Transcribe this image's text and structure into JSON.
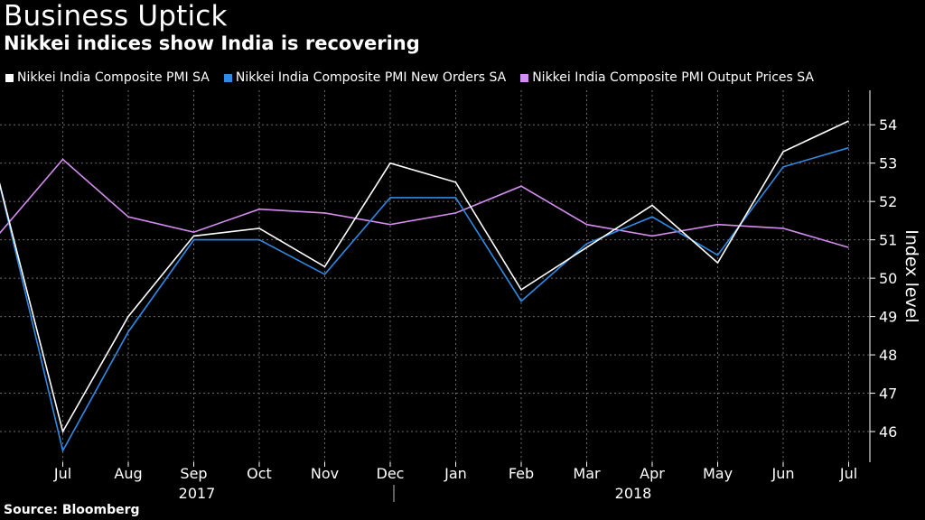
{
  "header": {
    "title": "Business Uptick",
    "subtitle": "Nikkei indices show India is recovering"
  },
  "source": "Source: Bloomberg",
  "chart_data": {
    "type": "line",
    "title": "Business Uptick",
    "subtitle": "Nikkei indices show India is recovering",
    "ylabel": "Index level",
    "xlabel": "",
    "ylim": [
      45.2,
      54.9
    ],
    "yticks": [
      46,
      47,
      48,
      49,
      50,
      51,
      52,
      53,
      54
    ],
    "grid": true,
    "legend_position": "top",
    "x": [
      "2017-06",
      "2017-07",
      "2017-08",
      "2017-09",
      "2017-10",
      "2017-11",
      "2017-12",
      "2018-01",
      "2018-02",
      "2018-03",
      "2018-04",
      "2018-05",
      "2018-06",
      "2018-07"
    ],
    "x_tick_labels": [
      "Jul",
      "Aug",
      "Sep",
      "Oct",
      "Nov",
      "Dec",
      "Jan",
      "Feb",
      "Mar",
      "Apr",
      "May",
      "Jun",
      "Jul"
    ],
    "year_labels": [
      "2017",
      "2018"
    ],
    "series": [
      {
        "name": "Nikkei India Composite PMI SA",
        "color": "#ffffff",
        "values": [
          52.7,
          46.0,
          49.0,
          51.1,
          51.3,
          50.3,
          53.0,
          52.5,
          49.7,
          50.8,
          51.9,
          50.4,
          53.3,
          54.1
        ]
      },
      {
        "name": "Nikkei India Composite PMI New Orders SA",
        "color": "#2f8ae5",
        "values": [
          52.7,
          45.5,
          48.6,
          51.0,
          51.0,
          50.1,
          52.1,
          52.1,
          49.4,
          50.9,
          51.6,
          50.6,
          52.9,
          53.4
        ]
      },
      {
        "name": "Nikkei India Composite PMI Output Prices SA",
        "color": "#d48cf0",
        "values": [
          51.1,
          53.1,
          51.6,
          51.2,
          51.8,
          51.7,
          51.4,
          51.7,
          52.4,
          51.4,
          51.1,
          51.4,
          51.3,
          50.8
        ]
      }
    ]
  }
}
